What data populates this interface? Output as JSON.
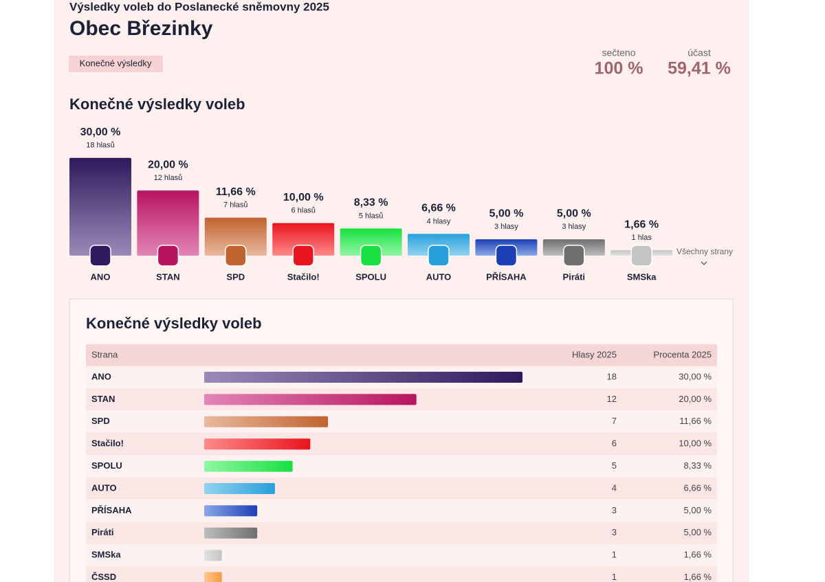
{
  "header": {
    "supertitle": "Výsledky voleb do Poslanecké sněmovny 2025",
    "title": "Obec Březinky",
    "badge": "Konečné výsledky",
    "counted_label": "sečteno",
    "counted": "100 %",
    "turnout_label": "účast",
    "turnout": "59,41 %"
  },
  "chart_data": {
    "type": "bar",
    "title": "Konečné výsledky voleb",
    "categories": [
      "ANO",
      "STAN",
      "SPD",
      "Stačilo!",
      "SPOLU",
      "AUTO",
      "PŘÍSAHA",
      "Piráti",
      "SMSka"
    ],
    "values": [
      30,
      20,
      11.66,
      10,
      8.33,
      6.66,
      5,
      5,
      1.66
    ],
    "value_labels": [
      "30,00 %",
      "20,00 %",
      "11,66 %",
      "10,00 %",
      "8,33 %",
      "6,66 %",
      "5,00 %",
      "5,00 %",
      "1,66 %"
    ],
    "votes_labels": [
      "18 hlasů",
      "12 hlasů",
      "7 hlasů",
      "6 hlasů",
      "5 hlasů",
      "4 hlasy",
      "3 hlasy",
      "3 hlasy",
      "1 hlas"
    ],
    "colors": [
      [
        "#2e1a5c",
        "#9a8ab8"
      ],
      [
        "#b8135f",
        "#e286b6"
      ],
      [
        "#c0632e",
        "#e9b99e"
      ],
      [
        "#e8141e",
        "#ff8a8a"
      ],
      [
        "#18e040",
        "#90f7a4"
      ],
      [
        "#26a0dc",
        "#92d2f0"
      ],
      [
        "#1b3fb5",
        "#8aa8e8"
      ],
      [
        "#6f6f6f",
        "#bdbdbd"
      ],
      [
        "#c4c4c4",
        "#e2e2e2"
      ]
    ],
    "more_link": "Všechny strany"
  },
  "table": {
    "title": "Konečné výsledky voleb",
    "columns": [
      "Strana",
      "Hlasy 2025",
      "Procenta 2025"
    ],
    "rows": [
      {
        "party": "ANO",
        "votes": 18,
        "percent": "30,00 %",
        "color": [
          "#9a8ab8",
          "#2e1a5c"
        ]
      },
      {
        "party": "STAN",
        "votes": 12,
        "percent": "20,00 %",
        "color": [
          "#e286b6",
          "#b8135f"
        ]
      },
      {
        "party": "SPD",
        "votes": 7,
        "percent": "11,66 %",
        "color": [
          "#e9b99e",
          "#c0632e"
        ]
      },
      {
        "party": "Stačilo!",
        "votes": 6,
        "percent": "10,00 %",
        "color": [
          "#ff8a8a",
          "#e8141e"
        ]
      },
      {
        "party": "SPOLU",
        "votes": 5,
        "percent": "8,33 %",
        "color": [
          "#90f7a4",
          "#18e040"
        ]
      },
      {
        "party": "AUTO",
        "votes": 4,
        "percent": "6,66 %",
        "color": [
          "#92d2f0",
          "#26a0dc"
        ]
      },
      {
        "party": "PŘÍSAHA",
        "votes": 3,
        "percent": "5,00 %",
        "color": [
          "#8aa8e8",
          "#1b3fb5"
        ]
      },
      {
        "party": "Piráti",
        "votes": 3,
        "percent": "5,00 %",
        "color": [
          "#bdbdbd",
          "#6f6f6f"
        ]
      },
      {
        "party": "SMSka",
        "votes": 1,
        "percent": "1,66 %",
        "color": [
          "#e2e2e2",
          "#c4c4c4"
        ]
      },
      {
        "party": "ČSSD",
        "votes": 1,
        "percent": "1,66 %",
        "color": [
          "#ffc890",
          "#f59a40"
        ]
      }
    ]
  }
}
